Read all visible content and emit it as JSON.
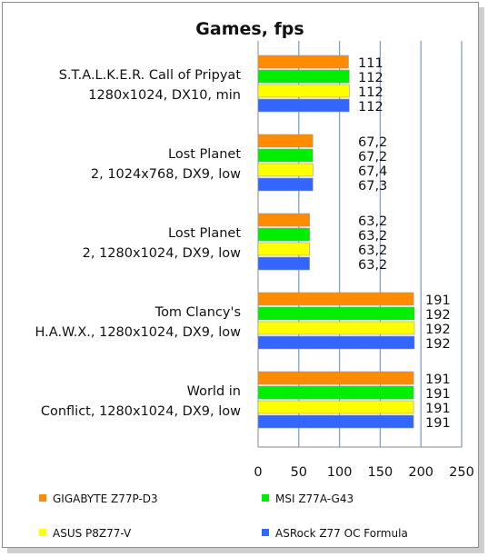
{
  "chart_data": {
    "type": "bar",
    "orientation": "horizontal",
    "title": "Games, fps",
    "categories": [
      [
        "S.T.A.L.K.E.R. Call of Pripyat",
        "1280x1024, DX10, min"
      ],
      [
        "Lost Planet",
        "2, 1024x768, DX9, low"
      ],
      [
        "Lost Planet",
        "2, 1280x1024, DX9, low"
      ],
      [
        "Tom Clancy's",
        "H.A.W.X., 1280x1024, DX9, low"
      ],
      [
        "World in",
        "Conflict, 1280x1024, DX9, low"
      ]
    ],
    "series": [
      {
        "name": "GIGABYTE Z77P-D3",
        "color": "#ff8c00",
        "values": [
          111,
          67.2,
          63.2,
          191,
          191
        ],
        "labels": [
          "111",
          "67,2",
          "63,2",
          "191",
          "191"
        ]
      },
      {
        "name": "MSI Z77A-G43",
        "color": "#00ee00",
        "values": [
          112,
          67.2,
          63.2,
          192,
          191
        ],
        "labels": [
          "112",
          "67,2",
          "63,2",
          "192",
          "191"
        ]
      },
      {
        "name": "ASUS P8Z77-V",
        "color": "#ffff00",
        "values": [
          112,
          67.4,
          63.2,
          192,
          191
        ],
        "labels": [
          "112",
          "67,4",
          "63,2",
          "192",
          "191"
        ]
      },
      {
        "name": "ASRock Z77 OC Formula",
        "color": "#3366ff",
        "values": [
          112,
          67.3,
          63.2,
          192,
          191
        ],
        "labels": [
          "112",
          "67,3",
          "63,2",
          "192",
          "191"
        ]
      }
    ],
    "xlim": [
      0,
      250
    ],
    "xticks": [
      0,
      50,
      100,
      150,
      200,
      250
    ],
    "grid": "vertical",
    "legend": "bottom"
  }
}
